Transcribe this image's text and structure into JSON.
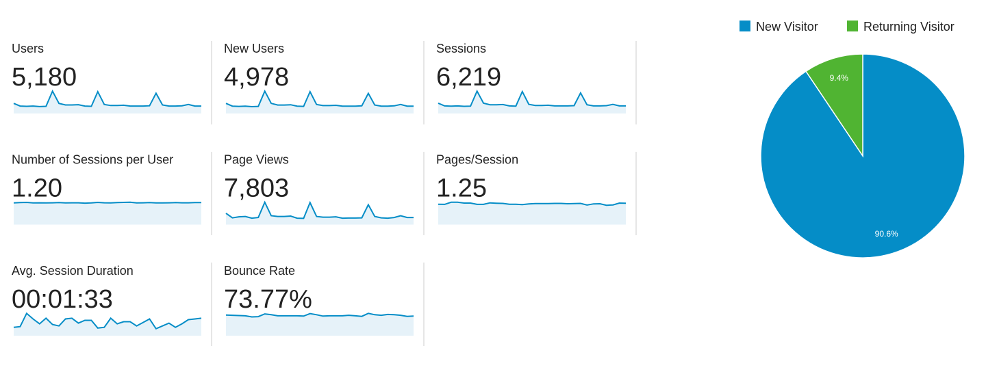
{
  "metrics": [
    {
      "label": "Users",
      "value": "5,180",
      "trend": [
        190,
        140,
        135,
        140,
        130,
        135,
        420,
        190,
        160,
        160,
        165,
        140,
        135,
        410,
        170,
        150,
        150,
        155,
        140,
        140,
        140,
        145,
        380,
        160,
        140,
        140,
        145,
        170,
        140,
        140
      ]
    },
    {
      "label": "New Users",
      "value": "4,978",
      "trend": [
        185,
        135,
        130,
        135,
        125,
        130,
        410,
        185,
        155,
        155,
        160,
        135,
        130,
        400,
        165,
        145,
        145,
        150,
        135,
        135,
        135,
        140,
        370,
        155,
        135,
        135,
        140,
        165,
        135,
        135
      ]
    },
    {
      "label": "Sessions",
      "value": "6,219",
      "trend": [
        230,
        170,
        165,
        170,
        160,
        165,
        500,
        230,
        195,
        195,
        200,
        170,
        165,
        490,
        205,
        180,
        180,
        185,
        170,
        170,
        170,
        175,
        460,
        195,
        170,
        170,
        175,
        205,
        170,
        170
      ]
    },
    {
      "label": "Number of Sessions per User",
      "value": "1.20",
      "trend": [
        1.19,
        1.21,
        1.22,
        1.19,
        1.2,
        1.19,
        1.2,
        1.21,
        1.19,
        1.2,
        1.2,
        1.18,
        1.19,
        1.22,
        1.2,
        1.19,
        1.21,
        1.22,
        1.23,
        1.19,
        1.2,
        1.21,
        1.19,
        1.19,
        1.2,
        1.21,
        1.2,
        1.2,
        1.21,
        1.21
      ]
    },
    {
      "label": "Page Views",
      "value": "7,803",
      "trend": [
        320,
        190,
        220,
        230,
        180,
        200,
        630,
        250,
        230,
        230,
        240,
        180,
        175,
        620,
        230,
        210,
        210,
        220,
        180,
        185,
        185,
        190,
        560,
        230,
        190,
        180,
        200,
        250,
        200,
        200
      ]
    },
    {
      "label": "Pages/Session",
      "value": "1.25",
      "trend": [
        1.22,
        1.21,
        1.34,
        1.34,
        1.29,
        1.29,
        1.21,
        1.21,
        1.3,
        1.28,
        1.27,
        1.22,
        1.22,
        1.2,
        1.24,
        1.26,
        1.26,
        1.26,
        1.27,
        1.27,
        1.25,
        1.26,
        1.27,
        1.17,
        1.24,
        1.25,
        1.16,
        1.18,
        1.29,
        1.28
      ]
    },
    {
      "label": "Avg. Session Duration",
      "value": "00:01:33",
      "trend": [
        60,
        65,
        160,
        120,
        85,
        125,
        80,
        70,
        120,
        125,
        90,
        110,
        110,
        55,
        60,
        125,
        85,
        100,
        100,
        70,
        95,
        120,
        50,
        70,
        90,
        60,
        85,
        115,
        120,
        125
      ]
    },
    {
      "label": "Bounce Rate",
      "value": "73.77%",
      "trend": [
        75,
        74,
        73,
        72,
        68,
        69,
        79,
        76,
        72,
        72,
        72,
        72,
        71,
        80,
        76,
        71,
        72,
        72,
        72,
        74,
        72,
        70,
        81,
        76,
        74,
        77,
        76,
        74,
        70,
        71
      ]
    }
  ],
  "chart_data": {
    "type": "pie",
    "categories": [
      "New Visitor",
      "Returning Visitor"
    ],
    "values": [
      90.6,
      9.4
    ],
    "value_labels": [
      "90.6%",
      "9.4%"
    ],
    "colors": [
      "#058dc7",
      "#50b432"
    ],
    "legend": "top"
  }
}
